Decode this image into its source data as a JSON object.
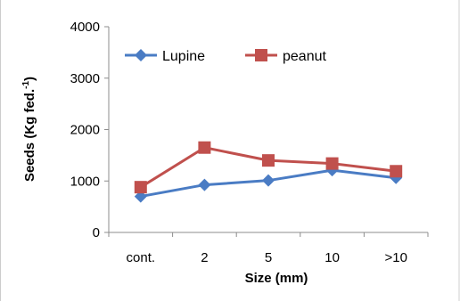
{
  "chart_data": {
    "type": "line",
    "categories": [
      "cont.",
      "2",
      "5",
      "10",
      ">10"
    ],
    "series": [
      {
        "name": "Lupine",
        "values": [
          700,
          925,
          1010,
          1210,
          1060
        ],
        "color": "#4a7cc4",
        "marker": "diamond"
      },
      {
        "name": "peanut",
        "values": [
          880,
          1650,
          1400,
          1340,
          1190
        ],
        "color": "#c0504d",
        "marker": "square"
      }
    ],
    "xlabel": "Size (mm)",
    "ylabel_main": "Seeds (Kg fed.",
    "ylabel_sup": "-1",
    "ylabel_close": ")",
    "ylim": [
      0,
      4000
    ],
    "yticks": [
      "0",
      "1000",
      "2000",
      "3000",
      "4000"
    ],
    "grid": false,
    "legend_position": "top"
  }
}
